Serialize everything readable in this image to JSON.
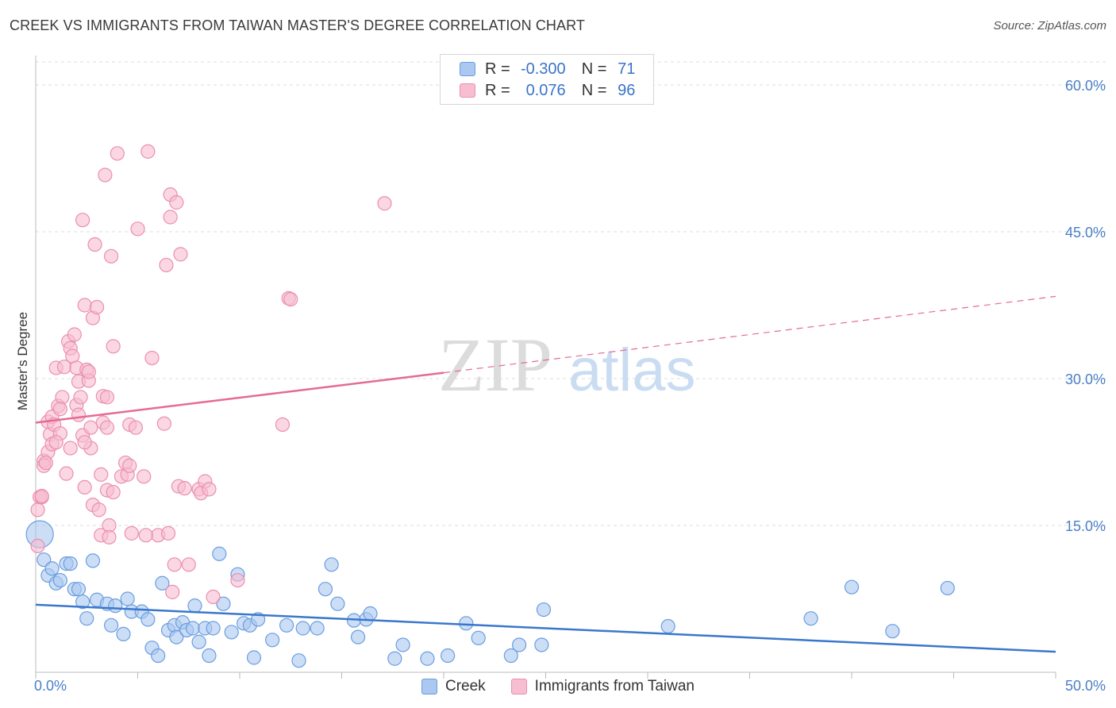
{
  "header": {
    "title": "CREEK VS IMMIGRANTS FROM TAIWAN MASTER'S DEGREE CORRELATION CHART",
    "source": "Source: ZipAtlas.com"
  },
  "legend": {
    "rows": [
      {
        "r_label": "R =",
        "r_value": "-0.300",
        "n_label": "N =",
        "n_value": "71"
      },
      {
        "r_label": "R =",
        "r_value": "0.076",
        "n_label": "N =",
        "n_value": "96"
      }
    ]
  },
  "watermark": {
    "zip": "ZIP",
    "atlas": "atlas"
  },
  "colors": {
    "creek_fill": "#aac8f0",
    "creek_stroke": "#6a9de0",
    "creek_line": "#3a77cc",
    "taiwan_fill": "#f7bdd0",
    "taiwan_stroke": "#eb8fae",
    "taiwan_line": "#e56a95",
    "tick_text": "#4a7ec9",
    "grid": "#dddddd"
  },
  "chart_data": {
    "type": "scatter",
    "title": "CREEK VS IMMIGRANTS FROM TAIWAN MASTER'S DEGREE CORRELATION CHART",
    "xlabel": "",
    "ylabel": "Master's Degree",
    "xlim": [
      0,
      50
    ],
    "ylim": [
      0,
      63
    ],
    "x_tick_labels": [
      "0.0%",
      "50.0%"
    ],
    "y_ticks": [
      15,
      30,
      45,
      60
    ],
    "y_tick_labels": [
      "15.0%",
      "30.0%",
      "45.0%",
      "60.0%"
    ],
    "grid": true,
    "legend_position": "top-center",
    "series": [
      {
        "name": "Creek",
        "r": -0.3,
        "n": 71,
        "trend": {
          "x": [
            0,
            50
          ],
          "y": [
            6.9,
            2.1
          ]
        },
        "points": [
          [
            0.2,
            14.1
          ],
          [
            0.4,
            11.5
          ],
          [
            0.6,
            9.9
          ],
          [
            0.8,
            10.6
          ],
          [
            1.0,
            9.1
          ],
          [
            1.2,
            9.4
          ],
          [
            1.5,
            11.1
          ],
          [
            1.7,
            11.1
          ],
          [
            1.9,
            8.5
          ],
          [
            2.1,
            8.5
          ],
          [
            2.3,
            7.2
          ],
          [
            2.5,
            5.5
          ],
          [
            2.8,
            11.4
          ],
          [
            3.0,
            7.4
          ],
          [
            3.5,
            7.0
          ],
          [
            3.7,
            4.8
          ],
          [
            3.9,
            6.8
          ],
          [
            4.3,
            3.9
          ],
          [
            4.5,
            7.5
          ],
          [
            4.7,
            6.2
          ],
          [
            5.2,
            6.2
          ],
          [
            5.5,
            5.4
          ],
          [
            5.7,
            2.5
          ],
          [
            6.0,
            1.7
          ],
          [
            6.2,
            9.1
          ],
          [
            6.5,
            4.3
          ],
          [
            6.8,
            4.8
          ],
          [
            6.9,
            3.6
          ],
          [
            7.2,
            5.1
          ],
          [
            7.4,
            4.3
          ],
          [
            7.7,
            4.5
          ],
          [
            7.8,
            6.8
          ],
          [
            8.0,
            3.1
          ],
          [
            8.3,
            4.5
          ],
          [
            8.5,
            1.7
          ],
          [
            8.7,
            4.5
          ],
          [
            9.0,
            12.1
          ],
          [
            9.2,
            7.0
          ],
          [
            9.6,
            4.1
          ],
          [
            9.9,
            10.0
          ],
          [
            10.2,
            5.0
          ],
          [
            10.5,
            4.8
          ],
          [
            10.7,
            1.5
          ],
          [
            10.9,
            5.4
          ],
          [
            11.6,
            3.3
          ],
          [
            12.3,
            4.8
          ],
          [
            12.9,
            1.2
          ],
          [
            13.1,
            4.5
          ],
          [
            13.8,
            4.5
          ],
          [
            14.2,
            8.5
          ],
          [
            14.5,
            11.0
          ],
          [
            14.8,
            7.0
          ],
          [
            15.6,
            5.3
          ],
          [
            15.8,
            3.6
          ],
          [
            16.2,
            5.4
          ],
          [
            16.4,
            6.0
          ],
          [
            17.6,
            1.4
          ],
          [
            18.0,
            2.8
          ],
          [
            19.2,
            1.4
          ],
          [
            20.2,
            1.7
          ],
          [
            21.1,
            5.0
          ],
          [
            21.7,
            3.5
          ],
          [
            23.3,
            1.7
          ],
          [
            23.7,
            2.8
          ],
          [
            24.8,
            2.8
          ],
          [
            24.9,
            6.4
          ],
          [
            31.0,
            4.7
          ],
          [
            38.0,
            5.5
          ],
          [
            40.0,
            8.7
          ],
          [
            44.7,
            8.6
          ],
          [
            42.0,
            4.2
          ]
        ]
      },
      {
        "name": "Immigrants from Taiwan",
        "r": 0.076,
        "n": 96,
        "trend": {
          "x": [
            0,
            20
          ],
          "y": [
            25.5,
            30.6
          ]
        },
        "trend_dashed": {
          "x": [
            20,
            50
          ],
          "y": [
            30.6,
            38.4
          ]
        },
        "points": [
          [
            0.1,
            16.6
          ],
          [
            0.1,
            12.9
          ],
          [
            0.2,
            17.9
          ],
          [
            0.3,
            17.9
          ],
          [
            0.4,
            21.6
          ],
          [
            0.4,
            21.1
          ],
          [
            0.6,
            22.5
          ],
          [
            0.6,
            25.6
          ],
          [
            0.7,
            24.3
          ],
          [
            0.8,
            26.1
          ],
          [
            0.8,
            23.3
          ],
          [
            0.9,
            25.3
          ],
          [
            1.0,
            31.1
          ],
          [
            1.1,
            27.2
          ],
          [
            1.2,
            24.4
          ],
          [
            1.3,
            28.1
          ],
          [
            1.4,
            31.2
          ],
          [
            1.5,
            20.3
          ],
          [
            1.6,
            33.8
          ],
          [
            1.7,
            22.9
          ],
          [
            1.7,
            33.1
          ],
          [
            1.8,
            32.3
          ],
          [
            1.9,
            34.5
          ],
          [
            2.0,
            27.3
          ],
          [
            2.0,
            31.1
          ],
          [
            2.1,
            29.7
          ],
          [
            2.1,
            26.3
          ],
          [
            2.2,
            28.1
          ],
          [
            2.3,
            24.2
          ],
          [
            2.3,
            46.2
          ],
          [
            2.4,
            37.5
          ],
          [
            2.4,
            18.9
          ],
          [
            2.5,
            30.9
          ],
          [
            2.6,
            29.8
          ],
          [
            2.6,
            30.7
          ],
          [
            2.7,
            22.9
          ],
          [
            2.7,
            25.0
          ],
          [
            2.8,
            17.1
          ],
          [
            2.8,
            36.2
          ],
          [
            2.9,
            43.7
          ],
          [
            3.0,
            37.3
          ],
          [
            3.1,
            16.6
          ],
          [
            3.2,
            14.0
          ],
          [
            3.2,
            20.2
          ],
          [
            3.3,
            25.5
          ],
          [
            3.3,
            28.2
          ],
          [
            3.4,
            50.8
          ],
          [
            3.5,
            28.1
          ],
          [
            3.5,
            18.6
          ],
          [
            3.6,
            15.0
          ],
          [
            3.6,
            13.8
          ],
          [
            3.7,
            42.5
          ],
          [
            3.8,
            33.3
          ],
          [
            3.8,
            18.4
          ],
          [
            4.0,
            53.0
          ],
          [
            4.2,
            20.0
          ],
          [
            4.4,
            21.4
          ],
          [
            4.5,
            20.2
          ],
          [
            4.6,
            25.3
          ],
          [
            4.6,
            21.1
          ],
          [
            4.7,
            14.2
          ],
          [
            4.9,
            25.0
          ],
          [
            5.0,
            45.3
          ],
          [
            5.3,
            20.0
          ],
          [
            5.5,
            53.2
          ],
          [
            5.7,
            32.1
          ],
          [
            6.0,
            14.0
          ],
          [
            6.3,
            25.4
          ],
          [
            6.4,
            41.6
          ],
          [
            6.5,
            14.2
          ],
          [
            6.6,
            46.5
          ],
          [
            6.6,
            48.8
          ],
          [
            6.7,
            8.2
          ],
          [
            6.8,
            11.0
          ],
          [
            6.9,
            48.0
          ],
          [
            7.0,
            19.0
          ],
          [
            7.1,
            42.7
          ],
          [
            7.3,
            18.8
          ],
          [
            7.5,
            11.0
          ],
          [
            8.0,
            18.7
          ],
          [
            8.1,
            18.3
          ],
          [
            8.3,
            19.5
          ],
          [
            8.5,
            18.7
          ],
          [
            8.7,
            7.7
          ],
          [
            9.9,
            9.4
          ],
          [
            12.1,
            25.3
          ],
          [
            12.4,
            38.2
          ],
          [
            12.5,
            38.1
          ],
          [
            17.1,
            47.9
          ],
          [
            0.3,
            18.0
          ],
          [
            0.5,
            21.4
          ],
          [
            1.0,
            23.5
          ],
          [
            1.2,
            26.9
          ],
          [
            2.4,
            23.5
          ],
          [
            3.5,
            25.0
          ],
          [
            5.4,
            14.0
          ]
        ]
      }
    ],
    "bottom_legend": [
      "Creek",
      "Immigrants from Taiwan"
    ]
  }
}
